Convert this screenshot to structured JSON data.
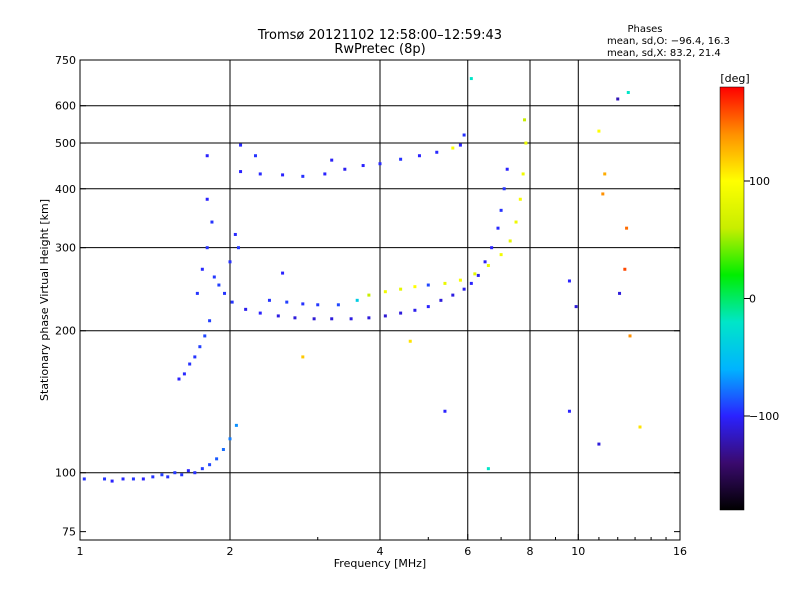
{
  "header": {
    "title_line1": "Tromsø 20121102 12:58:00–12:59:43",
    "title_line2": "RwPretec (8p)",
    "stats_title": "Phases",
    "stats_line1": "mean, sd,O: −96.4, 16.3",
    "stats_line2": "mean, sd,X:  83.2, 21.4"
  },
  "colorbar": {
    "unit_label": "[deg]",
    "ticks": [
      {
        "value": 100,
        "label": "100"
      },
      {
        "value": 0,
        "label": "0"
      },
      {
        "value": -100,
        "label": "−100"
      }
    ],
    "range": [
      -180,
      180
    ],
    "colors": [
      "#000000",
      "#3a0a6e",
      "#2a22ff",
      "#00b4ff",
      "#00e6c8",
      "#00ee00",
      "#c8ee00",
      "#ffff00",
      "#ff9000",
      "#ff0000"
    ]
  },
  "chart_data": {
    "type": "scatter",
    "title": "Tromsø 20121102 12:58:00–12:59:43",
    "subtitle": "RwPretec (8p)",
    "xlabel": "Frequency [MHz]",
    "ylabel": "Stationary phase Virtual Height [km]",
    "x_scale": "log",
    "y_scale": "log",
    "xlim": [
      1,
      16
    ],
    "ylim": [
      72,
      750
    ],
    "x_ticks": [
      {
        "value": 1,
        "label": "1"
      },
      {
        "value": 2,
        "label": "2"
      },
      {
        "value": 4,
        "label": "4"
      },
      {
        "value": 6,
        "label": "6"
      },
      {
        "value": 8,
        "label": "8"
      },
      {
        "value": 10,
        "label": "10"
      },
      {
        "value": 16,
        "label": "16"
      }
    ],
    "y_ticks": [
      {
        "value": 75,
        "label": "75"
      },
      {
        "value": 100,
        "label": "100"
      },
      {
        "value": 200,
        "label": "200"
      },
      {
        "value": 300,
        "label": "300"
      },
      {
        "value": 400,
        "label": "400"
      },
      {
        "value": 500,
        "label": "500"
      },
      {
        "value": 600,
        "label": "600"
      },
      {
        "value": 750,
        "label": "750"
      }
    ],
    "x_grid": [
      2,
      4,
      6,
      8,
      10
    ],
    "y_grid": [
      100,
      200,
      300,
      400,
      500,
      600
    ],
    "grid": true,
    "color_variable": "phase [deg]",
    "points": [
      [
        1.02,
        97,
        -95
      ],
      [
        1.12,
        97,
        -95
      ],
      [
        1.16,
        96,
        -100
      ],
      [
        1.22,
        97,
        -98
      ],
      [
        1.28,
        97,
        -95
      ],
      [
        1.34,
        97,
        -100
      ],
      [
        1.4,
        98,
        -95
      ],
      [
        1.46,
        99,
        -92
      ],
      [
        1.5,
        98,
        -96
      ],
      [
        1.55,
        100,
        -94
      ],
      [
        1.6,
        99,
        -95
      ],
      [
        1.65,
        101,
        -100
      ],
      [
        1.7,
        100,
        -96
      ],
      [
        1.76,
        102,
        -93
      ],
      [
        1.82,
        104,
        -90
      ],
      [
        1.88,
        107,
        -85
      ],
      [
        1.94,
        112,
        -80
      ],
      [
        2.0,
        118,
        -75
      ],
      [
        2.06,
        126,
        -70
      ],
      [
        1.58,
        158,
        -100
      ],
      [
        1.62,
        162,
        -98
      ],
      [
        1.66,
        170,
        -96
      ],
      [
        1.7,
        176,
        -95
      ],
      [
        1.74,
        185,
        -92
      ],
      [
        1.78,
        195,
        -90
      ],
      [
        1.82,
        210,
        -92
      ],
      [
        1.72,
        240,
        -95
      ],
      [
        1.76,
        270,
        -98
      ],
      [
        1.8,
        300,
        -96
      ],
      [
        1.84,
        340,
        -95
      ],
      [
        1.8,
        380,
        -100
      ],
      [
        1.86,
        260,
        -94
      ],
      [
        1.9,
        250,
        -92
      ],
      [
        1.95,
        240,
        -95
      ],
      [
        2.0,
        280,
        -96
      ],
      [
        2.05,
        320,
        -98
      ],
      [
        2.08,
        300,
        -94
      ],
      [
        2.02,
        230,
        -95
      ],
      [
        2.15,
        222,
        -105
      ],
      [
        2.3,
        218,
        -100
      ],
      [
        2.5,
        215,
        -108
      ],
      [
        2.7,
        213,
        -110
      ],
      [
        2.95,
        212,
        -112
      ],
      [
        3.2,
        212,
        -110
      ],
      [
        3.5,
        212,
        -108
      ],
      [
        3.8,
        213,
        -110
      ],
      [
        4.1,
        215,
        -112
      ],
      [
        4.4,
        218,
        -110
      ],
      [
        4.7,
        221,
        -105
      ],
      [
        5.0,
        225,
        -100
      ],
      [
        5.3,
        232,
        -110
      ],
      [
        5.6,
        238,
        -108
      ],
      [
        5.9,
        245,
        -105
      ],
      [
        6.1,
        252,
        -100
      ],
      [
        6.3,
        262,
        -104
      ],
      [
        6.5,
        280,
        -102
      ],
      [
        6.7,
        300,
        -100
      ],
      [
        6.9,
        330,
        -98
      ],
      [
        7.0,
        360,
        -96
      ],
      [
        7.1,
        400,
        -95
      ],
      [
        7.2,
        440,
        -100
      ],
      [
        2.4,
        232,
        -95
      ],
      [
        2.6,
        230,
        -92
      ],
      [
        2.8,
        228,
        -96
      ],
      [
        3.0,
        227,
        -94
      ],
      [
        3.3,
        227,
        -90
      ],
      [
        3.6,
        232,
        -40
      ],
      [
        3.8,
        238,
        60
      ],
      [
        4.1,
        242,
        90
      ],
      [
        4.4,
        245,
        80
      ],
      [
        4.7,
        248,
        100
      ],
      [
        5.0,
        250,
        -90
      ],
      [
        5.4,
        252,
        85
      ],
      [
        5.8,
        256,
        95
      ],
      [
        6.2,
        264,
        80
      ],
      [
        6.6,
        275,
        85
      ],
      [
        7.0,
        290,
        90
      ],
      [
        7.3,
        310,
        82
      ],
      [
        7.5,
        340,
        88
      ],
      [
        7.65,
        380,
        95
      ],
      [
        7.75,
        430,
        90
      ],
      [
        7.85,
        500,
        85
      ],
      [
        7.8,
        560,
        60
      ],
      [
        2.1,
        435,
        -100
      ],
      [
        2.3,
        430,
        -98
      ],
      [
        2.55,
        428,
        -100
      ],
      [
        2.8,
        425,
        -96
      ],
      [
        3.1,
        430,
        -100
      ],
      [
        3.4,
        440,
        -104
      ],
      [
        3.7,
        448,
        -100
      ],
      [
        4.0,
        452,
        -98
      ],
      [
        4.4,
        462,
        -96
      ],
      [
        4.8,
        470,
        -100
      ],
      [
        5.2,
        478,
        -98
      ],
      [
        5.6,
        488,
        95
      ],
      [
        5.8,
        495,
        -100
      ],
      [
        5.9,
        520,
        -96
      ],
      [
        2.1,
        495,
        -98
      ],
      [
        2.25,
        470,
        -95
      ],
      [
        3.2,
        460,
        -102
      ],
      [
        9.6,
        255,
        -100
      ],
      [
        9.9,
        225,
        -110
      ],
      [
        11.0,
        530,
        100
      ],
      [
        11.2,
        390,
        140
      ],
      [
        11.3,
        430,
        130
      ],
      [
        12.0,
        620,
        -120
      ],
      [
        12.1,
        240,
        -110
      ],
      [
        12.4,
        270,
        160
      ],
      [
        12.6,
        640,
        -20
      ],
      [
        12.7,
        195,
        140
      ],
      [
        13.3,
        125,
        110
      ],
      [
        12.5,
        330,
        150
      ],
      [
        11.0,
        115,
        -110
      ],
      [
        9.6,
        135,
        -100
      ],
      [
        5.4,
        135,
        -100
      ],
      [
        6.6,
        102,
        -20
      ],
      [
        4.6,
        190,
        110
      ],
      [
        2.8,
        176,
        120
      ],
      [
        1.8,
        470,
        -100
      ],
      [
        2.55,
        265,
        -100
      ],
      [
        6.1,
        685,
        -20
      ]
    ]
  }
}
